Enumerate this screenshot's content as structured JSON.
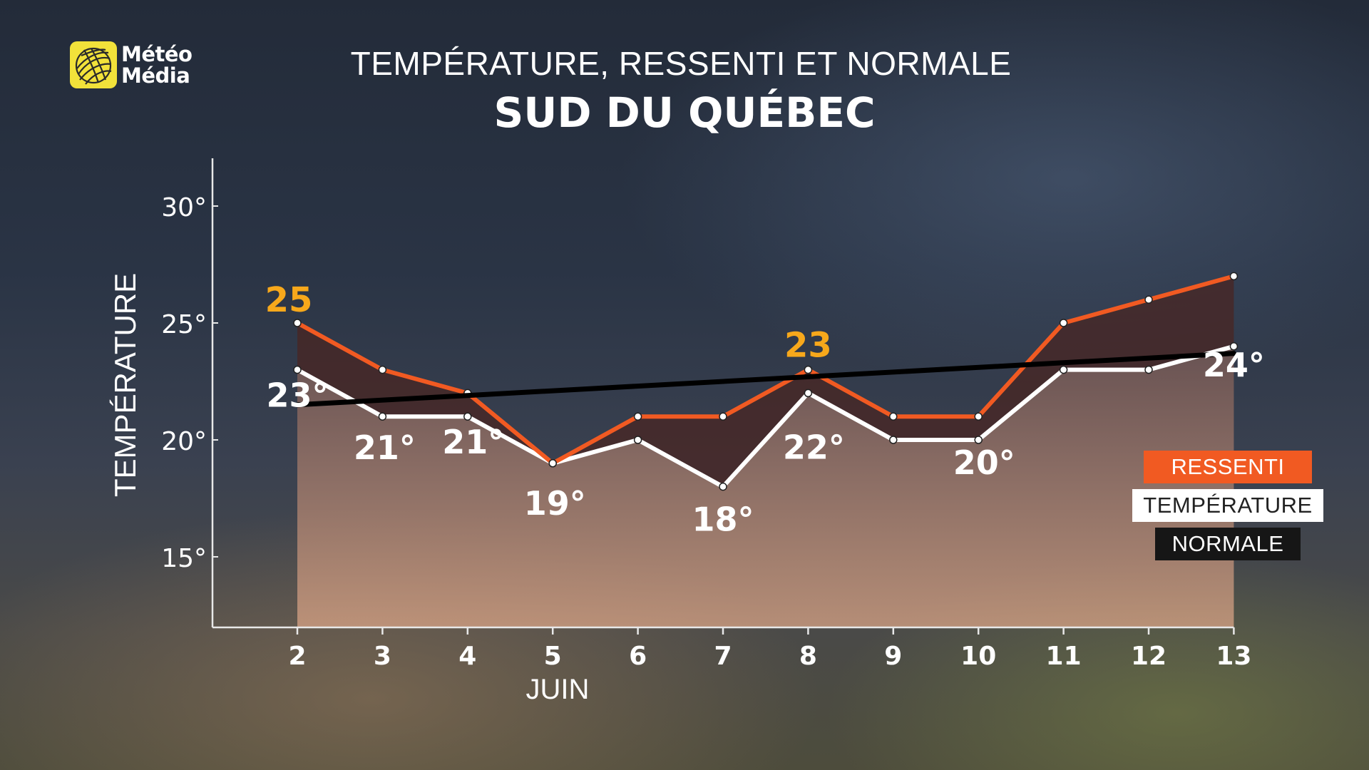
{
  "logo": {
    "line1": "Météo",
    "line2": "Média"
  },
  "title": "TEMPÉRATURE, RESSENTI ET NORMALE",
  "subtitle": "SUD DU QUÉBEC",
  "legend": {
    "ressenti": "RESSENTI",
    "temperature": "TEMPÉRATURE",
    "normale": "NORMALE"
  },
  "colors": {
    "ressenti": "#f15a22",
    "temperature": "#ffffff",
    "normale": "#000000",
    "highlight": "#f7a81b"
  },
  "chart_data": {
    "type": "line",
    "title": "TEMPÉRATURE, RESSENTI ET NORMALE",
    "subtitle": "SUD DU QUÉBEC",
    "xlabel": "JUIN",
    "ylabel": "TEMPÉRATURE",
    "x": [
      2,
      3,
      4,
      5,
      6,
      7,
      8,
      9,
      10,
      11,
      12,
      13
    ],
    "x_tick_labels": [
      "2",
      "3",
      "4",
      "5",
      "6",
      "7",
      "8",
      "9",
      "10",
      "11",
      "12",
      "13"
    ],
    "y_ticks": [
      15,
      20,
      25,
      30
    ],
    "y_tick_labels": [
      "15°",
      "20°",
      "25°",
      "30°"
    ],
    "ylim": [
      12,
      32
    ],
    "grid": false,
    "legend_position": "right",
    "series": [
      {
        "name": "RESSENTI",
        "values": [
          25,
          23,
          22,
          19,
          21,
          21,
          23,
          21,
          21,
          25,
          26,
          27
        ]
      },
      {
        "name": "TEMPÉRATURE",
        "values": [
          23,
          21,
          21,
          19,
          20,
          18,
          22,
          20,
          20,
          23,
          23,
          24
        ]
      },
      {
        "name": "NORMALE",
        "values": [
          21.5,
          null,
          null,
          null,
          null,
          null,
          null,
          null,
          null,
          null,
          null,
          23.7
        ]
      }
    ],
    "annotations_ressenti": [
      {
        "x": 2,
        "label": "25"
      },
      {
        "x": 8,
        "label": "23"
      }
    ],
    "annotations_temperature": [
      {
        "x": 2,
        "label": "23°"
      },
      {
        "x": 3,
        "label": "21°"
      },
      {
        "x": 4,
        "label": "21°"
      },
      {
        "x": 5,
        "label": "19°"
      },
      {
        "x": 7,
        "label": "18°"
      },
      {
        "x": 8,
        "label": "22°"
      },
      {
        "x": 10,
        "label": "20°"
      },
      {
        "x": 13,
        "label": "24°"
      }
    ]
  }
}
